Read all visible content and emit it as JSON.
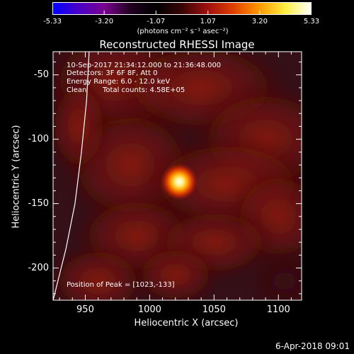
{
  "colorbar": {
    "ticks": [
      "-5.33",
      "-3.20",
      "-1.07",
      "1.07",
      "3.20",
      "5.33"
    ],
    "tick_values": [
      -5.33,
      -3.2,
      -1.07,
      1.07,
      3.2,
      5.33
    ],
    "unit": "(photons cm⁻² s⁻¹ asec⁻²)",
    "gradient_colors": [
      "#0000ff",
      "#4a00c8",
      "#7a0090",
      "#200020",
      "#000000",
      "#3a0505",
      "#a01010",
      "#e04000",
      "#ff9a00",
      "#ffee40",
      "#ffffff"
    ]
  },
  "chart_data": {
    "type": "heatmap",
    "title": "Reconstructed RHESSI Image",
    "xlabel": "Heliocentric X (arcsec)",
    "ylabel": "Heliocentric Y (arcsec)",
    "xlim": [
      925,
      1118
    ],
    "ylim": [
      -225,
      -32
    ],
    "xticks": [
      950,
      1000,
      1050,
      1100
    ],
    "yticks": [
      -50,
      -100,
      -150,
      -200
    ],
    "peak": {
      "x": 1023,
      "y": -133
    },
    "limb_curve": [
      [
        925,
        -225
      ],
      [
        935,
        -185
      ],
      [
        942,
        -150
      ],
      [
        947,
        -110
      ],
      [
        951,
        -70
      ],
      [
        953,
        -32
      ]
    ],
    "annotations": {
      "time_range": "10-Sep-2017 21:34:12.000 to 21:36:48.000",
      "detectors": "Detectors: 3F 6F 8F, Att 0",
      "energy": "Energy Range: 6.0 - 12.0 keV",
      "algorithm": "Clean",
      "total_counts": "Total counts: 4.58E+05",
      "peak_text": "Position of Peak = [1023,-133]"
    }
  },
  "footer": {
    "date": "6-Apr-2018 09:01"
  }
}
